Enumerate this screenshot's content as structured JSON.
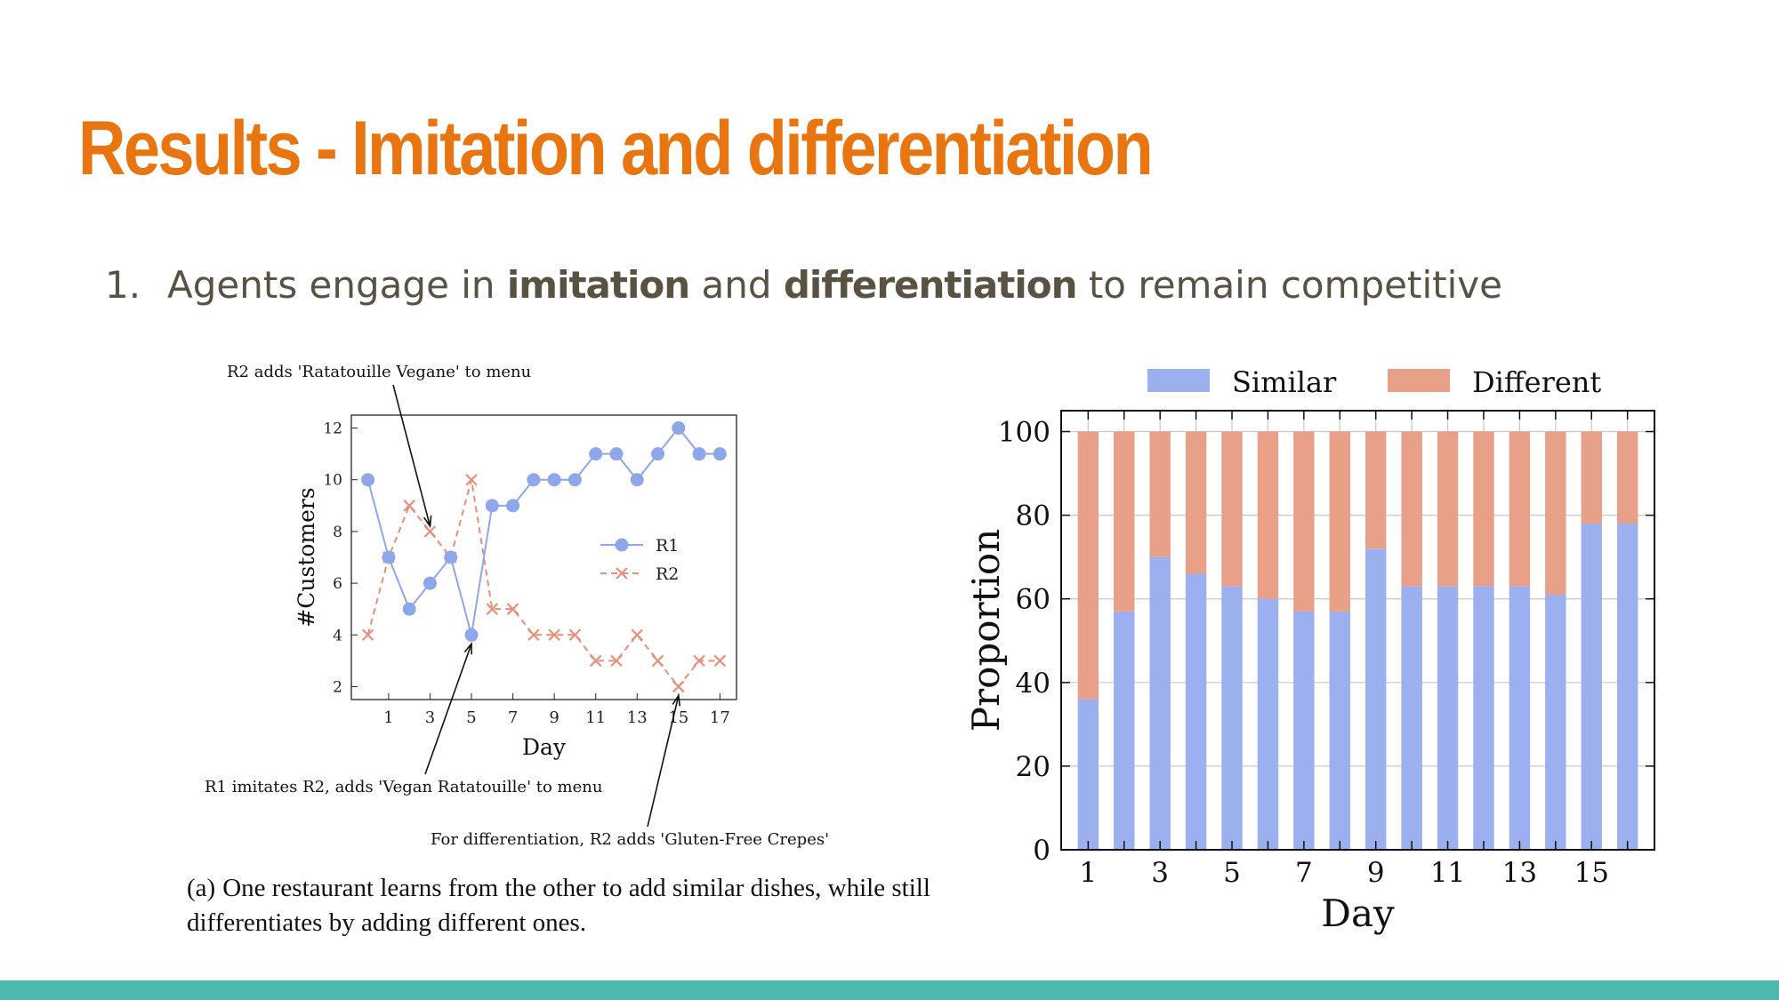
{
  "slide": {
    "title": "Results - Imitation and differentiation",
    "bullet": {
      "number": "1.",
      "pre": "Agents engage in ",
      "bold1": "imitation",
      "mid": " and ",
      "bold2": "differentiation",
      "post": " to remain competitive"
    },
    "caption_label": "(a)",
    "caption_text": "One restaurant learns from the other to add similar dishes, while still differentiates by adding different ones."
  },
  "colors": {
    "title": "#e8750f",
    "bullet_text": "#595142",
    "r1": "#8ea6ea",
    "r2": "#e6907a",
    "similar": "#9cb0f0",
    "different": "#e8a088",
    "footer": "#4db8ad"
  },
  "chart_data": [
    {
      "type": "line",
      "xlabel": "Day",
      "ylabel": "#Customers",
      "x": [
        0,
        1,
        2,
        3,
        4,
        5,
        6,
        7,
        8,
        9,
        10,
        11,
        12,
        13,
        14,
        15,
        16,
        17
      ],
      "xticks": [
        1,
        3,
        5,
        7,
        9,
        11,
        13,
        15,
        17
      ],
      "yticks": [
        2,
        4,
        6,
        8,
        10,
        12
      ],
      "xlim": [
        -0.8,
        17.8
      ],
      "ylim": [
        1.5,
        12.5
      ],
      "legend_position": "right",
      "series": [
        {
          "name": "R1",
          "marker": "circle",
          "style": "solid",
          "values": [
            10,
            7,
            5,
            6,
            7,
            4,
            9,
            9,
            10,
            10,
            10,
            11,
            11,
            10,
            11,
            12,
            11,
            11
          ]
        },
        {
          "name": "R2",
          "marker": "x",
          "style": "dashed",
          "values": [
            4,
            7,
            9,
            8,
            7,
            10,
            5,
            5,
            4,
            4,
            4,
            3,
            3,
            4,
            3,
            2,
            3,
            3
          ]
        }
      ],
      "annotations": [
        {
          "text": "R2 adds 'Ratatouille Vegane' to menu",
          "x": 3,
          "y": 8
        },
        {
          "text": "R1 imitates R2, adds 'Vegan Ratatouille' to menu",
          "x": 5,
          "y": 4
        },
        {
          "text": "For differentiation, R2 adds 'Gluten-Free Crepes'",
          "x": 15,
          "y": 2
        }
      ]
    },
    {
      "type": "bar",
      "stacked": true,
      "xlabel": "Day",
      "ylabel": "Proportion",
      "categories": [
        1,
        2,
        3,
        4,
        5,
        6,
        7,
        8,
        9,
        10,
        11,
        12,
        13,
        14,
        15,
        16
      ],
      "xticks": [
        1,
        3,
        5,
        7,
        9,
        11,
        13,
        15
      ],
      "yticks": [
        0,
        20,
        40,
        60,
        80,
        100
      ],
      "ylim": [
        0,
        100
      ],
      "grid": true,
      "legend_position": "top",
      "series": [
        {
          "name": "Similar",
          "values": [
            36,
            57,
            70,
            66,
            63,
            60,
            57,
            57,
            72,
            63,
            63,
            63,
            63,
            61,
            78,
            78
          ]
        },
        {
          "name": "Different",
          "values": [
            64,
            43,
            30,
            34,
            37,
            40,
            43,
            43,
            28,
            37,
            37,
            37,
            37,
            39,
            22,
            22
          ]
        }
      ]
    }
  ]
}
